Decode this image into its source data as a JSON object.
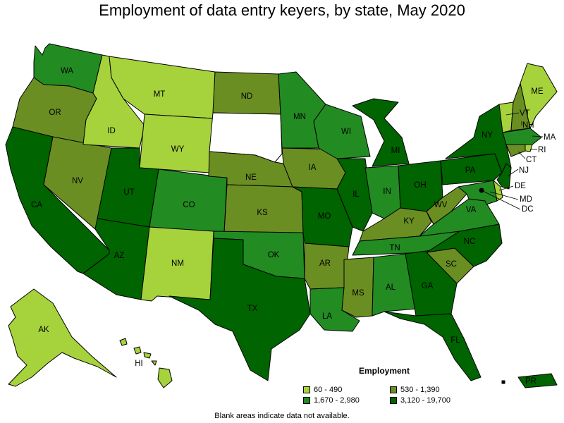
{
  "title": "Employment of data entry keyers, by state, May 2020",
  "legend": {
    "title": "Employment",
    "items": [
      {
        "label": "60 - 490",
        "color": "#a6d23c"
      },
      {
        "label": "530 - 1,390",
        "color": "#6b8e23"
      },
      {
        "label": "1,670 - 2,980",
        "color": "#228b22"
      },
      {
        "label": "3,120 - 19,700",
        "color": "#006400"
      }
    ]
  },
  "footnote": "Blank areas indicate data not available.",
  "states": [
    {
      "id": "WA",
      "label": "WA",
      "class": 2
    },
    {
      "id": "OR",
      "label": "OR",
      "class": 1
    },
    {
      "id": "CA",
      "label": "CA",
      "class": 3
    },
    {
      "id": "NV",
      "label": "NV",
      "class": 1
    },
    {
      "id": "ID",
      "label": "ID",
      "class": 0
    },
    {
      "id": "MT",
      "label": "MT",
      "class": 0
    },
    {
      "id": "WY",
      "label": "WY",
      "class": 0
    },
    {
      "id": "UT",
      "label": "UT",
      "class": 3
    },
    {
      "id": "AZ",
      "label": "AZ",
      "class": 3
    },
    {
      "id": "CO",
      "label": "CO",
      "class": 2
    },
    {
      "id": "NM",
      "label": "NM",
      "class": 0
    },
    {
      "id": "ND",
      "label": "ND",
      "class": 1
    },
    {
      "id": "SD",
      "label": "",
      "class": -1
    },
    {
      "id": "NE",
      "label": "NE",
      "class": 1
    },
    {
      "id": "KS",
      "label": "KS",
      "class": 1
    },
    {
      "id": "OK",
      "label": "OK",
      "class": 2
    },
    {
      "id": "TX",
      "label": "TX",
      "class": 3
    },
    {
      "id": "MN",
      "label": "MN",
      "class": 2
    },
    {
      "id": "IA",
      "label": "IA",
      "class": 1
    },
    {
      "id": "MO",
      "label": "MO",
      "class": 3
    },
    {
      "id": "AR",
      "label": "AR",
      "class": 1
    },
    {
      "id": "LA",
      "label": "LA",
      "class": 2
    },
    {
      "id": "WI",
      "label": "WI",
      "class": 2
    },
    {
      "id": "IL",
      "label": "IL",
      "class": 3
    },
    {
      "id": "MI",
      "label": "MI",
      "class": 3
    },
    {
      "id": "IN",
      "label": "IN",
      "class": 2
    },
    {
      "id": "OH",
      "label": "OH",
      "class": 3
    },
    {
      "id": "KY",
      "label": "KY",
      "class": 1
    },
    {
      "id": "TN",
      "label": "TN",
      "class": 2
    },
    {
      "id": "MS",
      "label": "MS",
      "class": 1
    },
    {
      "id": "AL",
      "label": "AL",
      "class": 2
    },
    {
      "id": "GA",
      "label": "GA",
      "class": 3
    },
    {
      "id": "FL",
      "label": "FL",
      "class": 3
    },
    {
      "id": "SC",
      "label": "SC",
      "class": 1
    },
    {
      "id": "NC",
      "label": "NC",
      "class": 3
    },
    {
      "id": "VA",
      "label": "VA",
      "class": 2
    },
    {
      "id": "WV",
      "label": "WV",
      "class": 1
    },
    {
      "id": "PA",
      "label": "PA",
      "class": 3
    },
    {
      "id": "NY",
      "label": "NY",
      "class": 3
    },
    {
      "id": "VT",
      "label": "VT",
      "class": 0
    },
    {
      "id": "NH",
      "label": "NH",
      "class": 1
    },
    {
      "id": "ME",
      "label": "ME",
      "class": 0
    },
    {
      "id": "MA",
      "label": "MA",
      "class": 2
    },
    {
      "id": "RI",
      "label": "RI",
      "class": 0
    },
    {
      "id": "CT",
      "label": "CT",
      "class": 1
    },
    {
      "id": "NJ",
      "label": "NJ",
      "class": 3
    },
    {
      "id": "DE",
      "label": "DE",
      "class": 0
    },
    {
      "id": "MD",
      "label": "MD",
      "class": 2
    },
    {
      "id": "DC",
      "label": "DC",
      "class": 3
    },
    {
      "id": "AK",
      "label": "AK",
      "class": 0
    },
    {
      "id": "HI",
      "label": "HI",
      "class": 0
    },
    {
      "id": "PR",
      "label": "PR",
      "class": 3
    }
  ]
}
